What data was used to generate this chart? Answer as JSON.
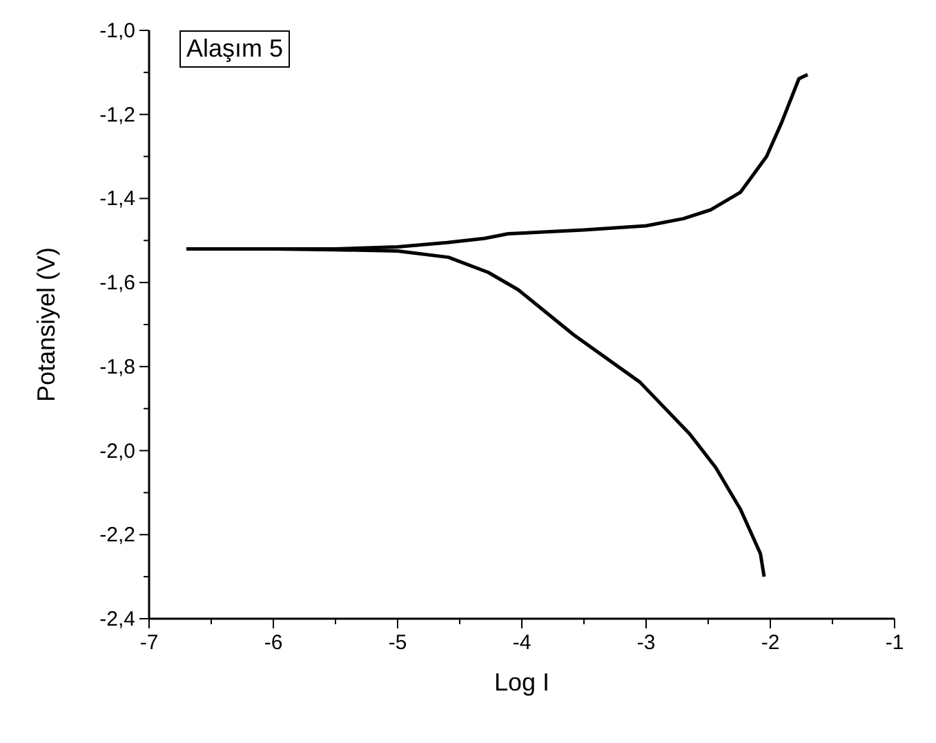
{
  "chart_data": {
    "type": "line",
    "xlabel": "Log I",
    "ylabel": "Potansiyel (V)",
    "annotations": [
      "Alaşım 5"
    ],
    "xlim": [
      -7,
      -1
    ],
    "ylim": [
      -2.4,
      -1.0
    ],
    "xticks": [
      -7,
      {
        "value": -6.5,
        "label": null
      },
      -6,
      {
        "value": -5.5,
        "label": null
      },
      -5,
      {
        "value": -4.5,
        "label": null
      },
      -4,
      {
        "value": -3.5,
        "label": null
      },
      -3,
      {
        "value": -2.5,
        "label": null
      },
      -2,
      {
        "value": -1.5,
        "label": null
      },
      -1
    ],
    "yticks": [
      {
        "value": -2.4,
        "label": "-2,4"
      },
      {
        "value": -2.3,
        "label": null
      },
      {
        "value": -2.2,
        "label": "-2,2"
      },
      {
        "value": -2.1,
        "label": null
      },
      {
        "value": -2.0,
        "label": "-2,0"
      },
      {
        "value": -1.9,
        "label": null
      },
      {
        "value": -1.8,
        "label": "-1,8"
      },
      {
        "value": -1.7,
        "label": null
      },
      {
        "value": -1.6,
        "label": "-1,6"
      },
      {
        "value": -1.5,
        "label": null
      },
      {
        "value": -1.4,
        "label": "-1,4"
      },
      {
        "value": -1.3,
        "label": null
      },
      {
        "value": -1.2,
        "label": "-1,2"
      },
      {
        "value": -1.1,
        "label": null
      },
      {
        "value": -1.0,
        "label": "-1,0"
      }
    ],
    "grid": false,
    "legend": false,
    "marker": "none",
    "line_style": "solid",
    "series": [
      {
        "color": "#000000",
        "x": [
          -6.7,
          -6.0,
          -5.5,
          -5.0,
          -4.6,
          -4.3,
          -4.11,
          -3.5,
          -3.0,
          -2.7,
          -2.48,
          -2.24,
          -2.03,
          -1.91,
          -1.77,
          -1.7
        ],
        "values": [
          -1.52,
          -1.52,
          -1.52,
          -1.515,
          -1.505,
          -1.495,
          -1.484,
          -1.475,
          -1.465,
          -1.448,
          -1.427,
          -1.385,
          -1.3,
          -1.22,
          -1.115,
          -1.105
        ]
      },
      {
        "color": "#000000",
        "x": [
          -6.7,
          -6.0,
          -5.5,
          -5.0,
          -4.59,
          -4.27,
          -4.03,
          -3.58,
          -3.05,
          -2.65,
          -2.44,
          -2.24,
          -2.08,
          -2.05
        ],
        "values": [
          -1.52,
          -1.52,
          -1.522,
          -1.525,
          -1.54,
          -1.576,
          -1.617,
          -1.725,
          -1.837,
          -1.96,
          -2.04,
          -2.14,
          -2.245,
          -2.3
        ]
      }
    ]
  }
}
